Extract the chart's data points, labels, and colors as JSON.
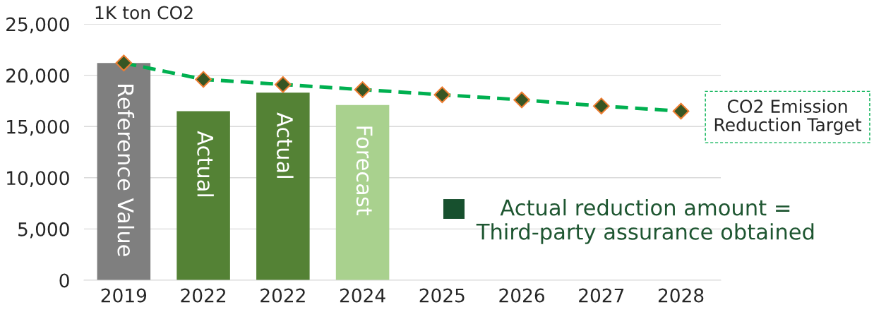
{
  "chart_data": {
    "type": "bar",
    "ylabel": "1K ton CO2",
    "categories": [
      "2019",
      "2022",
      "2022",
      "2024",
      "2025",
      "2026",
      "2027",
      "2028"
    ],
    "series": [
      {
        "values": [
          21200,
          16500,
          18300,
          17100,
          null,
          null,
          null,
          null
        ],
        "colors": [
          "#7f7f7f",
          "#548235",
          "#548235",
          "#a9d18e",
          null,
          null,
          null,
          null
        ],
        "value_labels": [
          "Reference Value",
          "Actual",
          "Actual",
          "Forecast",
          null,
          null,
          null,
          null
        ]
      },
      {
        "type": "line",
        "name": "CO2 Emission\nReduction Target",
        "color": "#00b050",
        "values": [
          21200,
          19600,
          19100,
          18600,
          18100,
          17600,
          17000,
          16500
        ]
      }
    ],
    "ylim": [
      0,
      25000
    ],
    "yticks": [
      0,
      {
        "value": 5000,
        "label": "5,000"
      },
      {
        "value": 10000,
        "label": "10,000"
      },
      {
        "value": 15000,
        "label": "15,000"
      },
      {
        "value": 20000,
        "label": "20,000"
      },
      {
        "value": 25000,
        "label": "25,000"
      }
    ],
    "grid": "y",
    "marker": "diamond",
    "line_style": "dashed",
    "annotations": [
      "Actual reduction amount =\nThird-party assurance obtained"
    ]
  }
}
